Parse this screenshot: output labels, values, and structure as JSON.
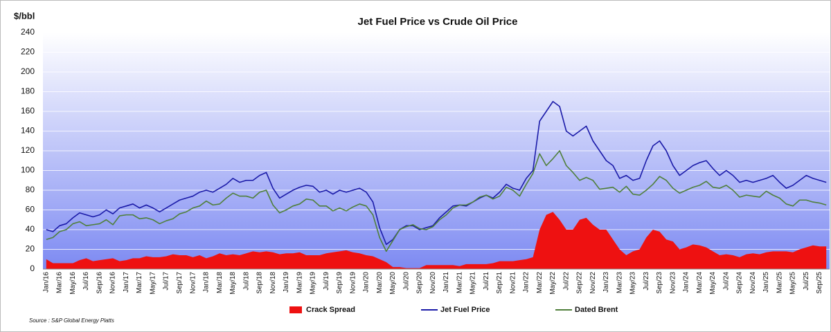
{
  "chart_data": {
    "type": "line",
    "title": "Jet Fuel Price vs Crude Oil Price",
    "y_label": "$/bbl",
    "source": "Source : S&P Global Energy Platts",
    "grid": true,
    "legend": "bottom",
    "ylim": [
      0,
      240
    ],
    "yticks": [
      0,
      20,
      40,
      60,
      80,
      100,
      120,
      140,
      160,
      180,
      200,
      220,
      240
    ],
    "categories": [
      "Jan/16",
      null,
      "Mar/16",
      null,
      "May/16",
      null,
      "Jul/16",
      null,
      "Sep/16",
      null,
      "Nov/16",
      null,
      "Jan/17",
      null,
      "Mar/17",
      null,
      "May/17",
      null,
      "Jul/17",
      null,
      "Sep/17",
      null,
      "Nov/17",
      null,
      "Jan/18",
      null,
      "Mar/18",
      null,
      "May/18",
      null,
      "Jul/18",
      null,
      "Sep/18",
      null,
      "Nov/18",
      null,
      "Jan/19",
      null,
      "Mar/19",
      null,
      "May/19",
      null,
      "Jul/19",
      null,
      "Sep/19",
      null,
      "Nov/19",
      null,
      "Jan/20",
      null,
      "Mar/20",
      null,
      "May/20",
      null,
      "Jul/20",
      null,
      "Sep/20",
      null,
      "Nov/20",
      null,
      "Jan/21",
      null,
      "Mar/21",
      null,
      "May/21",
      null,
      "Jul/21",
      null,
      "Sep/21",
      null,
      "Nov/21",
      null,
      "Jan/22",
      null,
      "Mar/22",
      null,
      "May/22",
      null,
      "Jul/22",
      null,
      "Sep/22",
      null,
      "Nov/22",
      null,
      "Jan/23",
      null,
      "Mar/23",
      null,
      "May/23",
      null,
      "Jul/23",
      null,
      "Sep/23",
      null,
      "Nov/23",
      null,
      "Jan/24",
      null,
      "Mar/24",
      null,
      "May/24",
      null,
      "Jul/24",
      null,
      "Sep/24",
      null,
      "Nov/24",
      null,
      "Jan/25",
      null,
      "Mar/25",
      null,
      "May/25",
      null,
      "Jul/25",
      null,
      "Sep/25",
      null
    ],
    "series": [
      {
        "name": "Crack Spread",
        "kind": "area",
        "color": "#ee1111",
        "values": [
          10,
          6,
          6,
          6,
          6,
          9,
          11,
          8,
          9,
          10,
          11,
          8,
          9,
          11,
          11,
          13,
          12,
          12,
          13,
          15,
          14,
          14,
          12,
          14,
          11,
          13,
          16,
          14,
          15,
          14,
          16,
          18,
          17,
          18,
          17,
          15,
          16,
          16,
          17,
          14,
          14,
          14,
          16,
          17,
          18,
          19,
          17,
          16,
          14,
          13,
          10,
          7,
          2,
          2,
          1,
          1,
          1,
          4,
          4,
          4,
          4,
          4,
          3,
          5,
          5,
          5,
          5,
          6,
          8,
          8,
          8,
          9,
          10,
          12,
          40,
          55,
          58,
          50,
          40,
          40,
          50,
          52,
          45,
          40,
          40,
          30,
          20,
          14,
          18,
          20,
          32,
          40,
          38,
          30,
          28,
          20,
          22,
          25,
          24,
          22,
          18,
          14,
          15,
          14,
          12,
          15,
          16,
          15,
          17,
          18,
          18,
          18,
          17,
          20,
          22,
          24,
          23,
          23
        ]
      },
      {
        "name": "Jet Fuel Price",
        "kind": "line",
        "color": "#1a1aa8",
        "values": [
          40,
          38,
          44,
          46,
          52,
          57,
          55,
          53,
          55,
          60,
          56,
          62,
          64,
          66,
          62,
          65,
          62,
          58,
          62,
          66,
          70,
          72,
          74,
          78,
          80,
          78,
          82,
          86,
          92,
          88,
          90,
          90,
          95,
          98,
          82,
          72,
          76,
          80,
          83,
          85,
          84,
          78,
          80,
          76,
          80,
          78,
          80,
          82,
          78,
          68,
          42,
          25,
          30,
          40,
          44,
          44,
          40,
          42,
          44,
          52,
          58,
          64,
          65,
          64,
          68,
          72,
          75,
          72,
          78,
          86,
          82,
          80,
          92,
          100,
          150,
          160,
          170,
          165,
          140,
          135,
          140,
          145,
          130,
          120,
          110,
          105,
          92,
          95,
          90,
          92,
          110,
          125,
          130,
          120,
          105,
          95,
          100,
          105,
          108,
          110,
          102,
          95,
          100,
          95,
          88,
          90,
          88,
          90,
          92,
          95,
          88,
          82,
          85,
          90,
          95,
          92,
          90,
          88
        ]
      },
      {
        "name": "Dated Brent",
        "kind": "line",
        "color": "#4f7f3a",
        "values": [
          30,
          32,
          38,
          40,
          46,
          48,
          44,
          45,
          46,
          50,
          45,
          54,
          55,
          55,
          51,
          52,
          50,
          46,
          49,
          51,
          56,
          58,
          62,
          64,
          69,
          65,
          66,
          72,
          77,
          74,
          74,
          72,
          78,
          80,
          65,
          57,
          60,
          64,
          66,
          71,
          70,
          64,
          64,
          59,
          62,
          59,
          63,
          66,
          64,
          55,
          32,
          18,
          29,
          40,
          43,
          45,
          41,
          40,
          43,
          50,
          55,
          62,
          65,
          65,
          68,
          73,
          75,
          71,
          74,
          83,
          80,
          74,
          86,
          97,
          117,
          105,
          112,
          120,
          105,
          98,
          90,
          93,
          90,
          81,
          82,
          83,
          78,
          84,
          76,
          75,
          80,
          86,
          94,
          90,
          82,
          77,
          80,
          83,
          85,
          89,
          83,
          82,
          85,
          80,
          73,
          75,
          74,
          73,
          79,
          75,
          72,
          66,
          64,
          70,
          70,
          68,
          67,
          65
        ]
      }
    ]
  }
}
